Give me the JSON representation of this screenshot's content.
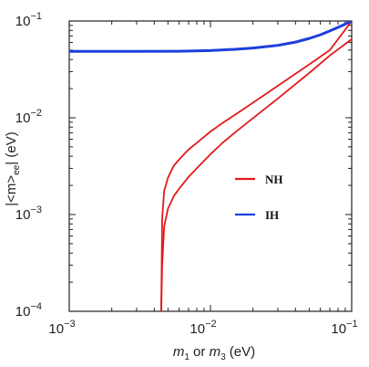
{
  "chart_data": {
    "type": "line",
    "xscale": "log",
    "yscale": "log",
    "xlim": [
      0.001,
      0.1
    ],
    "ylim": [
      0.0001,
      0.1
    ],
    "x_ticks": [
      {
        "value": 0.001,
        "base": "10",
        "exp": "−3"
      },
      {
        "value": 0.01,
        "base": "10",
        "exp": "−2"
      },
      {
        "value": 0.1,
        "base": "10",
        "exp": "−1"
      }
    ],
    "y_ticks": [
      {
        "value": 0.0001,
        "base": "10",
        "exp": "−4"
      },
      {
        "value": 0.001,
        "base": "10",
        "exp": "−3"
      },
      {
        "value": 0.01,
        "base": "10",
        "exp": "−2"
      },
      {
        "value": 0.1,
        "base": "10",
        "exp": "−1"
      }
    ],
    "xlabel": {
      "m1": "m",
      "m1_sub": "1",
      "or": " or ",
      "m3": "m",
      "m3_sub": "3",
      "unit": " (eV)"
    },
    "ylabel": "|<m>ee| (eV)",
    "ylabel_parts": {
      "pre": "|<m>",
      "sub": "ee",
      "post": "| (eV)"
    },
    "grid": false,
    "legend_position": "center-right",
    "series": [
      {
        "name": "NH",
        "color": "#e31a1c",
        "lines": [
          {
            "x": [
              0.00448,
              0.00455,
              0.0047,
              0.005,
              0.0055,
              0.006,
              0.007,
              0.008,
              0.01,
              0.012,
              0.015,
              0.02,
              0.03,
              0.05,
              0.07,
              0.1
            ],
            "y": [
              0.0001,
              0.0003,
              0.00075,
              0.00115,
              0.00155,
              0.00185,
              0.00245,
              0.003,
              0.0042,
              0.0054,
              0.0071,
              0.0099,
              0.0158,
              0.029,
              0.044,
              0.065
            ]
          },
          {
            "x": [
              0.00448,
              0.00455,
              0.0047,
              0.005,
              0.0055,
              0.006,
              0.007,
              0.008,
              0.01,
              0.012,
              0.015,
              0.02,
              0.03,
              0.05,
              0.07,
              0.1
            ],
            "y": [
              0.0001,
              0.0009,
              0.00175,
              0.0024,
              0.0032,
              0.0037,
              0.0047,
              0.0055,
              0.0072,
              0.0087,
              0.0108,
              0.0143,
              0.0214,
              0.0355,
              0.05,
              0.1
            ]
          }
        ]
      },
      {
        "name": "IH",
        "color": "#1c3fdc",
        "lines": [
          {
            "x": [
              0.001,
              0.003,
              0.006,
              0.01,
              0.015,
              0.02,
              0.03,
              0.04,
              0.05,
              0.06,
              0.07,
              0.08,
              0.09,
              0.1
            ],
            "y": [
              0.0485,
              0.0485,
              0.0487,
              0.0495,
              0.051,
              0.0525,
              0.056,
              0.0605,
              0.066,
              0.072,
              0.079,
              0.086,
              0.093,
              0.1
            ]
          }
        ]
      }
    ]
  }
}
